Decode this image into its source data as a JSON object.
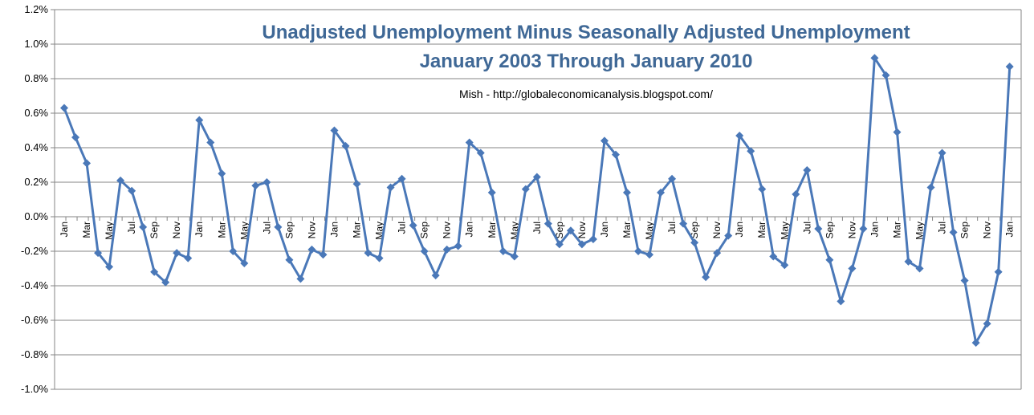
{
  "chart_data": {
    "type": "line",
    "title": "Unadjusted Unemployment Minus Seasonally Adjusted Unemployment",
    "title_line2": "January 2003 Through January 2010",
    "annotation": "Mish - http://globaleconomicanalysis.blogspot.com/",
    "xlabel": "",
    "ylabel": "",
    "ylim": [
      -1.0,
      1.2
    ],
    "yticks": [
      1.2,
      1.0,
      0.8,
      0.6,
      0.4,
      0.2,
      0.0,
      -0.2,
      -0.4,
      -0.6,
      -0.8,
      -1.0
    ],
    "ytick_labels": [
      "1.2%",
      "1.0%",
      "0.8%",
      "0.6%",
      "0.4%",
      "0.2%",
      "0.0%",
      "-0.2%",
      "-0.4%",
      "-0.6%",
      "-0.8%",
      "-1.0%"
    ],
    "grid": true,
    "legend": "none",
    "x": [
      "2003-01",
      "2003-02",
      "2003-03",
      "2003-04",
      "2003-05",
      "2003-06",
      "2003-07",
      "2003-08",
      "2003-09",
      "2003-10",
      "2003-11",
      "2003-12",
      "2004-01",
      "2004-02",
      "2004-03",
      "2004-04",
      "2004-05",
      "2004-06",
      "2004-07",
      "2004-08",
      "2004-09",
      "2004-10",
      "2004-11",
      "2004-12",
      "2005-01",
      "2005-02",
      "2005-03",
      "2005-04",
      "2005-05",
      "2005-06",
      "2005-07",
      "2005-08",
      "2005-09",
      "2005-10",
      "2005-11",
      "2005-12",
      "2006-01",
      "2006-02",
      "2006-03",
      "2006-04",
      "2006-05",
      "2006-06",
      "2006-07",
      "2006-08",
      "2006-09",
      "2006-10",
      "2006-11",
      "2006-12",
      "2007-01",
      "2007-02",
      "2007-03",
      "2007-04",
      "2007-05",
      "2007-06",
      "2007-07",
      "2007-08",
      "2007-09",
      "2007-10",
      "2007-11",
      "2007-12",
      "2008-01",
      "2008-02",
      "2008-03",
      "2008-04",
      "2008-05",
      "2008-06",
      "2008-07",
      "2008-08",
      "2008-09",
      "2008-10",
      "2008-11",
      "2008-12",
      "2009-01",
      "2009-02",
      "2009-03",
      "2009-04",
      "2009-05",
      "2009-06",
      "2009-07",
      "2009-08",
      "2009-09",
      "2009-10",
      "2009-11",
      "2009-12",
      "2010-01"
    ],
    "x_tick_labels": [
      "Jan",
      "",
      "Mar",
      "",
      "May",
      "",
      "Jul",
      "",
      "Sep",
      "",
      "Nov",
      "",
      "Jan",
      "",
      "Mar",
      "",
      "May",
      "",
      "Jul",
      "",
      "Sep",
      "",
      "Nov",
      "",
      "Jan",
      "",
      "Mar",
      "",
      "May",
      "",
      "Jul",
      "",
      "Sep",
      "",
      "Nov",
      "",
      "Jan",
      "",
      "Mar",
      "",
      "May",
      "",
      "Jul",
      "",
      "Sep",
      "",
      "Nov",
      "",
      "Jan",
      "",
      "Mar",
      "",
      "May",
      "",
      "Jul",
      "",
      "Sep",
      "",
      "Nov",
      "",
      "Jan",
      "",
      "Mar",
      "",
      "May",
      "",
      "Jul",
      "",
      "Sep",
      "",
      "Nov",
      "",
      "Jan",
      "",
      "Mar",
      "",
      "May",
      "",
      "Jul",
      "",
      "Sep",
      "",
      "Nov",
      "",
      "Jan"
    ],
    "series": [
      {
        "values": [
          0.63,
          0.46,
          0.31,
          -0.21,
          -0.29,
          0.21,
          0.15,
          -0.06,
          -0.32,
          -0.38,
          -0.21,
          -0.24,
          0.56,
          0.43,
          0.25,
          -0.2,
          -0.27,
          0.18,
          0.2,
          -0.06,
          -0.25,
          -0.36,
          -0.19,
          -0.22,
          0.5,
          0.41,
          0.19,
          -0.21,
          -0.24,
          0.17,
          0.22,
          -0.05,
          -0.2,
          -0.34,
          -0.19,
          -0.17,
          0.43,
          0.37,
          0.14,
          -0.2,
          -0.23,
          0.16,
          0.23,
          -0.04,
          -0.16,
          -0.08,
          -0.16,
          -0.13,
          0.44,
          0.36,
          0.14,
          -0.2,
          -0.22,
          0.14,
          0.22,
          -0.04,
          -0.15,
          -0.35,
          -0.21,
          -0.11,
          0.47,
          0.38,
          0.16,
          -0.23,
          -0.28,
          0.13,
          0.27,
          -0.07,
          -0.25,
          -0.49,
          -0.3,
          -0.07,
          0.92,
          0.82,
          0.49,
          -0.26,
          -0.3,
          0.17,
          0.37,
          -0.09,
          -0.37,
          -0.73,
          -0.62,
          -0.32,
          0.87
        ]
      }
    ],
    "colors": {
      "line": "#4a78b8",
      "title": "#3f6896",
      "grid": "#868686",
      "axis": "#868686"
    }
  }
}
